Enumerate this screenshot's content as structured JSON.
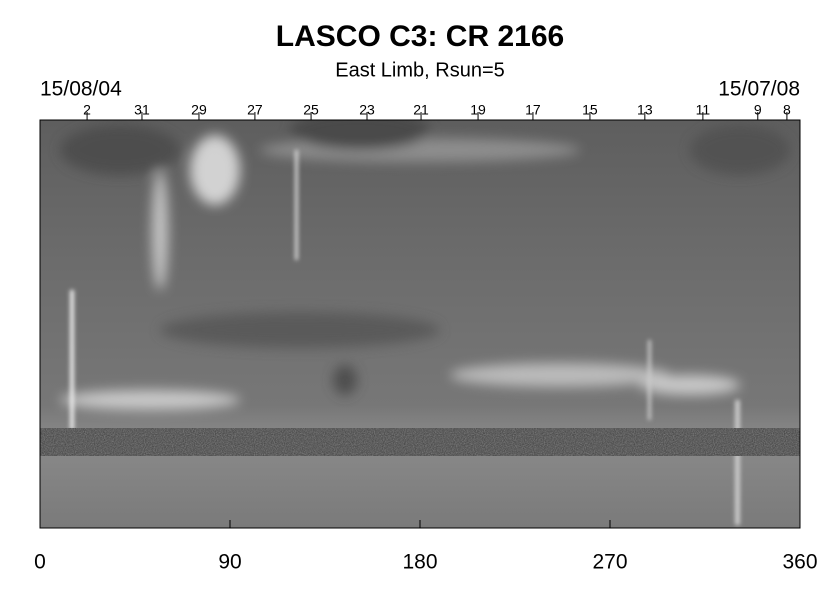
{
  "chart_data": {
    "type": "synoptic-map",
    "title": "LASCO C3: CR 2166",
    "subtitle": "East Limb, Rsun=5",
    "xlim": [
      0,
      360
    ],
    "xticks": [
      0,
      90,
      180,
      270,
      360
    ],
    "top_axis": {
      "start_label": "15/08/04",
      "end_label": "15/07/08",
      "ticks": [
        {
          "value": 22.3,
          "label": "2"
        },
        {
          "value": 48.3,
          "label": "31"
        },
        {
          "value": 75.3,
          "label": "29"
        },
        {
          "value": 101.8,
          "label": "27"
        },
        {
          "value": 128.4,
          "label": "25"
        },
        {
          "value": 154.9,
          "label": "23"
        },
        {
          "value": 180.5,
          "label": "21"
        },
        {
          "value": 207.5,
          "label": "19"
        },
        {
          "value": 233.5,
          "label": "17"
        },
        {
          "value": 260.5,
          "label": "15"
        },
        {
          "value": 286.5,
          "label": "13"
        },
        {
          "value": 314,
          "label": "11"
        },
        {
          "value": 340,
          "label": "9"
        },
        {
          "value": 353.8,
          "label": "8"
        }
      ]
    }
  }
}
